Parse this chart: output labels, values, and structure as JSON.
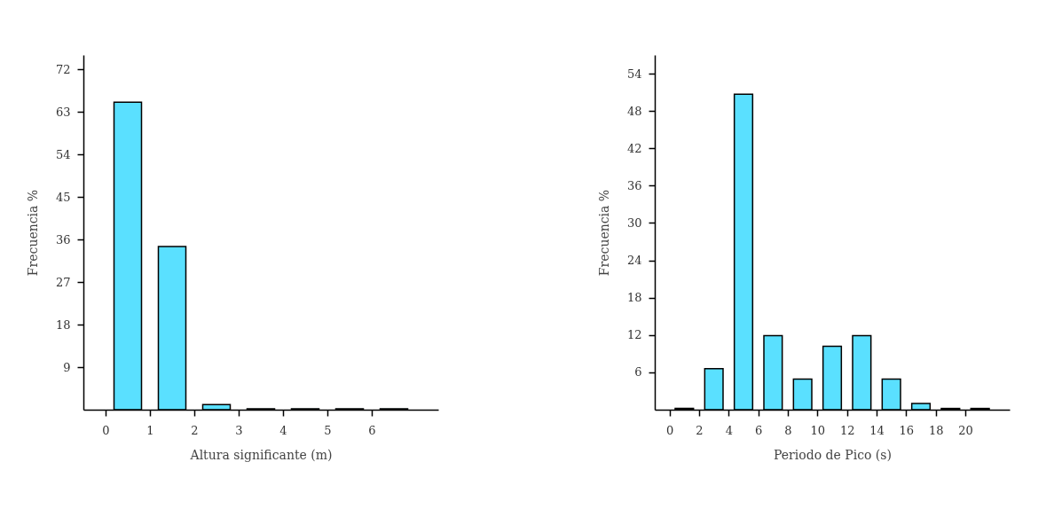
{
  "chart_data": [
    {
      "type": "bar",
      "x": [
        0.5,
        1.5,
        2.5,
        3.5,
        4.5,
        5.5,
        6.5
      ],
      "values": [
        65,
        34.5,
        1.1,
        0.2,
        0.2,
        0.2,
        0.2
      ],
      "color": "#5ae0ff",
      "xlabel": "Altura significante (m)",
      "ylabel": "Frecuencia %",
      "xlim": [
        -0.5,
        7.5
      ],
      "xticks": [
        0,
        1,
        2,
        3,
        4,
        5,
        6
      ],
      "ylim": [
        0,
        75
      ],
      "yticks": [
        9,
        18,
        27,
        36,
        45,
        54,
        63,
        72
      ]
    },
    {
      "type": "bar",
      "x": [
        1,
        3,
        5,
        7,
        9,
        11,
        13,
        15,
        17,
        19,
        21
      ],
      "values": [
        0.2,
        6.6,
        50.7,
        11.9,
        4.9,
        10.2,
        11.9,
        4.9,
        1,
        0.2,
        0.2
      ],
      "color": "#5ae0ff",
      "xlabel": "Periodo de Pico (s)",
      "ylabel": "Frecuencia %",
      "xlim": [
        -1,
        23
      ],
      "xticks": [
        0,
        2,
        4,
        6,
        8,
        10,
        12,
        14,
        16,
        18,
        20
      ],
      "ylim": [
        0,
        57
      ],
      "yticks": [
        6,
        12,
        18,
        24,
        30,
        36,
        42,
        48,
        54
      ]
    }
  ]
}
